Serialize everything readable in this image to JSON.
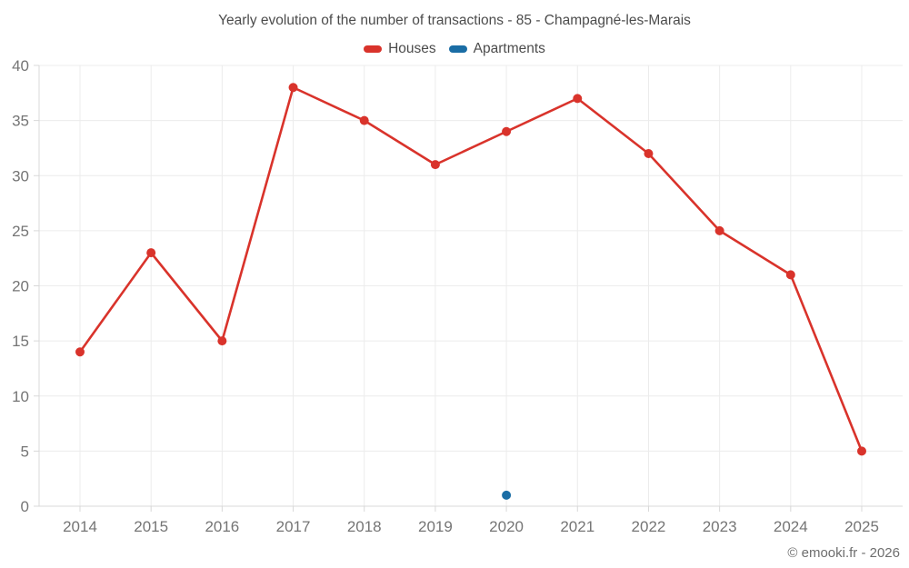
{
  "title": "Yearly evolution of the number of transactions - 85 - Champagné-les-Marais",
  "footer": "© emooki.fr - 2026",
  "colors": {
    "houses": "#d9332b",
    "apartments": "#1a6da5",
    "grid": "#ececec",
    "axis": "#d8d8d8",
    "tick_label": "#757575",
    "title_text": "#4c4c4c",
    "footer_text": "#6e6e6e"
  },
  "chart_data": {
    "type": "line",
    "categories": [
      "2014",
      "2015",
      "2016",
      "2017",
      "2018",
      "2019",
      "2020",
      "2021",
      "2022",
      "2023",
      "2024",
      "2025"
    ],
    "series": [
      {
        "name": "Houses",
        "color": "#d9332b",
        "values": [
          14,
          23,
          15,
          38,
          35,
          31,
          34,
          37,
          32,
          25,
          21,
          5
        ]
      },
      {
        "name": "Apartments",
        "color": "#1a6da5",
        "values": [
          null,
          null,
          null,
          null,
          null,
          null,
          1,
          null,
          null,
          null,
          null,
          null
        ]
      }
    ],
    "title": "Yearly evolution of the number of transactions - 85 - Champagné-les-Marais",
    "xlabel": "",
    "ylabel": "",
    "ylim": [
      0,
      40
    ],
    "ytick_step": 5,
    "grid": true,
    "legend_position": "top"
  }
}
